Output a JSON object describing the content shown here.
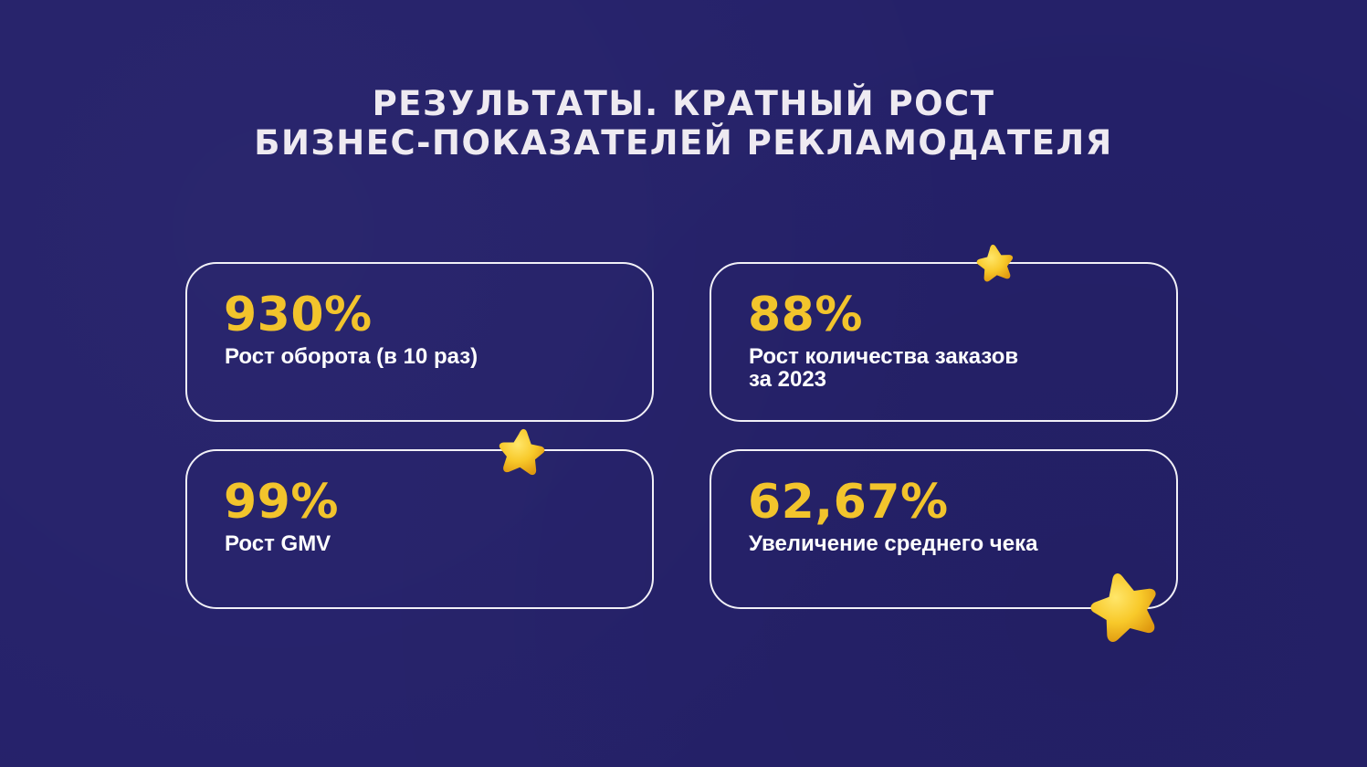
{
  "title": {
    "line1": "РЕЗУЛЬТАТЫ. КРАТНЫЙ РОСТ",
    "line2": "БИЗНЕС-ПОКАЗАТЕЛЕЙ РЕКЛАМОДАТЕЛЯ"
  },
  "cards": [
    {
      "value": "930%",
      "label": "Рост оборота (в 10 раз)"
    },
    {
      "value": "88%",
      "label": "Рост количества заказов\nза 2023"
    },
    {
      "value": "99%",
      "label": "Рост GMV"
    },
    {
      "value": "62,67%",
      "label": "Увеличение среднего чека"
    }
  ],
  "decorations": {
    "icon": "star-icon",
    "count": 3
  },
  "colors": {
    "background": "#25216a",
    "accent": "#f2c42c",
    "text": "#ffffff",
    "card_border": "#f1f0f7",
    "star": "#f7c52a"
  }
}
